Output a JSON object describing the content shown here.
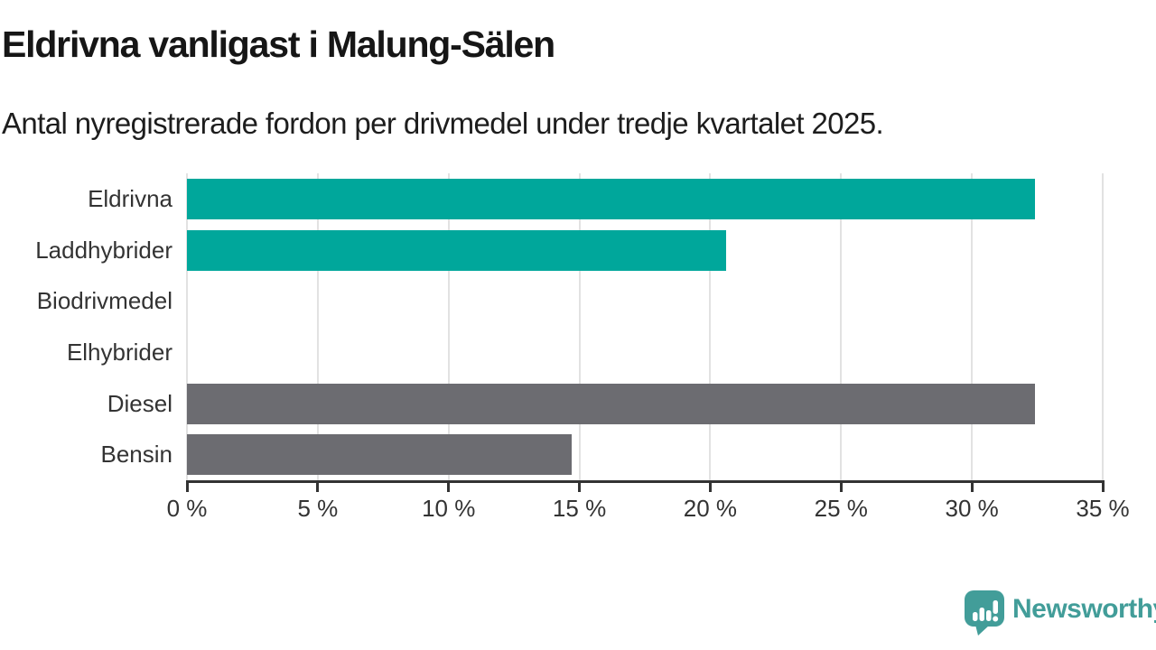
{
  "chart_data": {
    "type": "bar",
    "orientation": "horizontal",
    "title": "Eldrivna vanligast i Malung-Sälen",
    "subtitle": "Antal nyregistrerade fordon per drivmedel under tredje kvartalet 2025.",
    "categories": [
      "Eldrivna",
      "Laddhybrider",
      "Biodrivmedel",
      "Elhybrider",
      "Diesel",
      "Bensin"
    ],
    "values": [
      32.4,
      20.6,
      0,
      0,
      32.4,
      14.7
    ],
    "unit": "%",
    "bar_colors": [
      "#00A79B",
      "#00A79B",
      "#00A79B",
      "#00A79B",
      "#6C6C71",
      "#6C6C71"
    ],
    "xlabel": "",
    "ylabel": "",
    "xlim": [
      0,
      35
    ],
    "x_tick_values": [
      0,
      5,
      10,
      15,
      20,
      25,
      30,
      35
    ],
    "x_tick_labels": [
      "0 %",
      "5 %",
      "10 %",
      "15 %",
      "20 %",
      "25 %",
      "30 %",
      "35 %"
    ],
    "grid": true,
    "legend": "none",
    "style": {
      "grid_color": "#E2E2E2",
      "axis_color": "#333333",
      "tick_label_color": "#333333",
      "category_label_color": "#333333",
      "accent_teal": "#00A79B",
      "neutral_gray": "#6C6C71"
    }
  },
  "branding": {
    "logo_text": "Newsworthy",
    "logo_color": "#429D99",
    "logo_icon": "newsworthy-chart-bubble-icon"
  }
}
